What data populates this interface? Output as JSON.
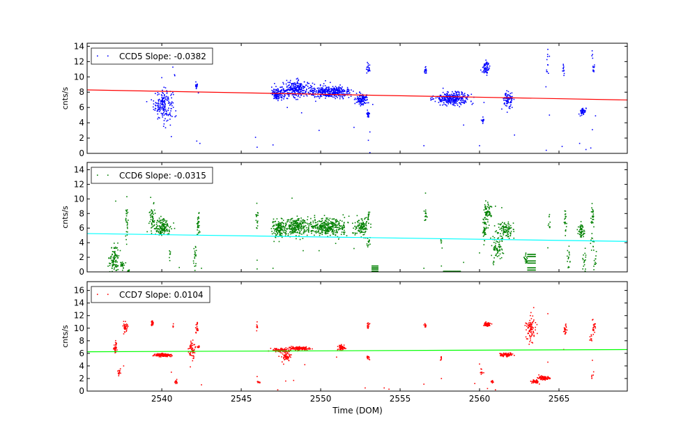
{
  "figure": {
    "xlabel": "Time (DOM)"
  },
  "chart_data": [
    {
      "type": "scatter",
      "name": "ccd5",
      "legend": "CCD5 Slope: -0.0382",
      "ylabel": "cnts/s",
      "xlim": [
        2535.3,
        2569.3
      ],
      "ylim": [
        0,
        14.4
      ],
      "xticks": [
        2540,
        2545,
        2550,
        2555,
        2560,
        2565
      ],
      "yticks": [
        0,
        2,
        4,
        6,
        8,
        10,
        12,
        14
      ],
      "show_xticklabels": false,
      "point_color": "#0000ff",
      "fit_color": "#ff0000",
      "fit_line": {
        "x": [
          2535.3,
          2569.3
        ],
        "y": [
          8.3,
          6.98
        ]
      },
      "clusters": [
        {
          "x": 2540.1,
          "y": 6.4,
          "sx": 0.3,
          "sy": 1.0,
          "n": 180
        },
        {
          "x": 2540.8,
          "y": 11.3,
          "sx": 0.05,
          "sy": 0.5,
          "n": 5
        },
        {
          "x": 2542.2,
          "y": 8.8,
          "sx": 0.05,
          "sy": 0.3,
          "n": 15
        },
        {
          "x": 2547.3,
          "y": 7.7,
          "sx": 0.2,
          "sy": 0.35,
          "n": 120
        },
        {
          "x": 2548.4,
          "y": 8.4,
          "sx": 0.45,
          "sy": 0.55,
          "n": 240
        },
        {
          "x": 2550.6,
          "y": 8.0,
          "sx": 0.7,
          "sy": 0.4,
          "n": 350
        },
        {
          "x": 2552.6,
          "y": 7.0,
          "sx": 0.2,
          "sy": 0.35,
          "n": 100
        },
        {
          "x": 2553.0,
          "y": 11.1,
          "sx": 0.05,
          "sy": 0.3,
          "n": 20
        },
        {
          "x": 2553.0,
          "y": 5.2,
          "sx": 0.06,
          "sy": 0.3,
          "n": 20
        },
        {
          "x": 2556.6,
          "y": 10.8,
          "sx": 0.04,
          "sy": 0.3,
          "n": 15
        },
        {
          "x": 2558.3,
          "y": 7.2,
          "sx": 0.55,
          "sy": 0.4,
          "n": 300
        },
        {
          "x": 2560.2,
          "y": 4.3,
          "sx": 0.04,
          "sy": 0.15,
          "n": 15
        },
        {
          "x": 2560.4,
          "y": 11.2,
          "sx": 0.12,
          "sy": 0.4,
          "n": 60
        },
        {
          "x": 2561.8,
          "y": 7.0,
          "sx": 0.15,
          "sy": 0.5,
          "n": 80
        },
        {
          "x": 2564.3,
          "y": 11.3,
          "sx": 0.04,
          "sy": 1.1,
          "n": 10
        },
        {
          "x": 2565.3,
          "y": 10.7,
          "sx": 0.04,
          "sy": 0.5,
          "n": 10
        },
        {
          "x": 2566.5,
          "y": 5.5,
          "sx": 0.1,
          "sy": 0.25,
          "n": 40
        },
        {
          "x": 2567.2,
          "y": 10.9,
          "sx": 0.04,
          "sy": 0.4,
          "n": 10
        },
        {
          "x": 2567.1,
          "y": 12.7,
          "sx": 0.03,
          "sy": 0.3,
          "n": 4
        }
      ],
      "outliers": [
        [
          2546.0,
          0.8
        ],
        [
          2547.0,
          1.1
        ],
        [
          2542.4,
          1.3
        ],
        [
          2542.2,
          1.6
        ],
        [
          2545.9,
          2.1
        ],
        [
          2549.9,
          3.0
        ],
        [
          2552.1,
          3.4
        ],
        [
          2553.1,
          2.8
        ],
        [
          2553.0,
          1.7
        ],
        [
          2553.1,
          0.1
        ],
        [
          2556.5,
          1.0
        ],
        [
          2559.0,
          3.7
        ],
        [
          2560.0,
          1.0
        ],
        [
          2562.2,
          2.4
        ],
        [
          2564.2,
          0.4
        ],
        [
          2565.2,
          0.9
        ],
        [
          2566.3,
          1.3
        ],
        [
          2566.7,
          0.5
        ],
        [
          2567.0,
          0.7
        ],
        [
          2567.1,
          3.1
        ],
        [
          2567.3,
          4.9
        ],
        [
          2564.4,
          5.0
        ],
        [
          2547.9,
          6.0
        ],
        [
          2564.3,
          13.6
        ],
        [
          2564.4,
          12.7
        ],
        [
          2540.6,
          2.2
        ],
        [
          2540.9,
          4.9
        ],
        [
          2540.0,
          9.9
        ],
        [
          2541.0,
          11.9
        ],
        [
          2542.3,
          7.9
        ],
        [
          2548.8,
          5.3
        ],
        [
          2561.4,
          5.8
        ],
        [
          2550.3,
          9.5
        ]
      ]
    },
    {
      "type": "scatter",
      "name": "ccd6",
      "legend": "CCD6 Slope: -0.0315",
      "ylabel": "cnts/s",
      "xlim": [
        2535.3,
        2569.3
      ],
      "ylim": [
        0,
        15
      ],
      "xticks": [
        2540,
        2545,
        2550,
        2555,
        2560,
        2565
      ],
      "yticks": [
        0,
        2,
        4,
        6,
        8,
        10,
        12,
        14
      ],
      "show_xticklabels": false,
      "point_color": "#008000",
      "fit_color": "#00ffff",
      "fit_line": {
        "x": [
          2535.3,
          2569.3
        ],
        "y": [
          5.25,
          4.18
        ]
      },
      "clusters": [
        {
          "x": 2537.0,
          "y": 1.8,
          "sx": 0.15,
          "sy": 1.0,
          "n": 90
        },
        {
          "x": 2537.5,
          "y": 1.0,
          "sx": 0.08,
          "sy": 0.3,
          "n": 25
        },
        {
          "x": 2537.8,
          "y": 6.5,
          "sx": 0.05,
          "sy": 1.3,
          "n": 25
        },
        {
          "x": 2537.9,
          "y": 0.15,
          "sx": 0.03,
          "sy": 0.08,
          "n": 8
        },
        {
          "x": 2539.4,
          "y": 7.6,
          "sx": 0.08,
          "sy": 0.7,
          "n": 40
        },
        {
          "x": 2540.0,
          "y": 6.1,
          "sx": 0.3,
          "sy": 0.6,
          "n": 150
        },
        {
          "x": 2540.5,
          "y": 2.3,
          "sx": 0.04,
          "sy": 0.4,
          "n": 8
        },
        {
          "x": 2542.1,
          "y": 2.1,
          "sx": 0.05,
          "sy": 1.0,
          "n": 20
        },
        {
          "x": 2542.3,
          "y": 6.6,
          "sx": 0.05,
          "sy": 0.6,
          "n": 30
        },
        {
          "x": 2546.0,
          "y": 7.2,
          "sx": 0.04,
          "sy": 0.7,
          "n": 15
        },
        {
          "x": 2547.3,
          "y": 5.9,
          "sx": 0.2,
          "sy": 0.55,
          "n": 130
        },
        {
          "x": 2548.4,
          "y": 6.2,
          "sx": 0.45,
          "sy": 0.6,
          "n": 250
        },
        {
          "x": 2550.5,
          "y": 6.1,
          "sx": 0.65,
          "sy": 0.6,
          "n": 330
        },
        {
          "x": 2552.6,
          "y": 6.1,
          "sx": 0.2,
          "sy": 0.6,
          "n": 110
        },
        {
          "x": 2553.0,
          "y": 7.4,
          "sx": 0.05,
          "sy": 0.5,
          "n": 15
        },
        {
          "x": 2553.0,
          "y": 4.1,
          "sx": 0.05,
          "sy": 0.4,
          "n": 15
        },
        {
          "x": 2556.6,
          "y": 7.6,
          "sx": 0.04,
          "sy": 0.5,
          "n": 15
        },
        {
          "x": 2557.6,
          "y": 4.2,
          "sx": 0.03,
          "sy": 0.3,
          "n": 6
        },
        {
          "x": 2560.3,
          "y": 5.8,
          "sx": 0.06,
          "sy": 0.8,
          "n": 40
        },
        {
          "x": 2560.5,
          "y": 8.2,
          "sx": 0.12,
          "sy": 0.7,
          "n": 60
        },
        {
          "x": 2561.1,
          "y": 3.5,
          "sx": 0.18,
          "sy": 1.2,
          "n": 80
        },
        {
          "x": 2561.7,
          "y": 5.8,
          "sx": 0.2,
          "sy": 0.5,
          "n": 90
        },
        {
          "x": 2562.9,
          "y": 1.8,
          "sx": 0.08,
          "sy": 0.6,
          "n": 20
        },
        {
          "x": 2564.4,
          "y": 7.0,
          "sx": 0.04,
          "sy": 1.0,
          "n": 10
        },
        {
          "x": 2565.4,
          "y": 6.6,
          "sx": 0.05,
          "sy": 0.7,
          "n": 20
        },
        {
          "x": 2565.6,
          "y": 2.0,
          "sx": 0.05,
          "sy": 1.0,
          "n": 15
        },
        {
          "x": 2566.4,
          "y": 5.6,
          "sx": 0.1,
          "sy": 0.5,
          "n": 50
        },
        {
          "x": 2566.6,
          "y": 1.5,
          "sx": 0.05,
          "sy": 0.7,
          "n": 15
        },
        {
          "x": 2567.1,
          "y": 7.7,
          "sx": 0.06,
          "sy": 0.6,
          "n": 25
        },
        {
          "x": 2567.1,
          "y": 4.2,
          "sx": 0.05,
          "sy": 0.8,
          "n": 12
        },
        {
          "x": 2567.3,
          "y": 1.5,
          "sx": 0.04,
          "sy": 0.7,
          "n": 10
        }
      ],
      "bands": [
        {
          "x0": 2553.2,
          "x1": 2553.6,
          "y": [
            0.1,
            0.35,
            0.55,
            0.8
          ]
        },
        {
          "x0": 2557.7,
          "x1": 2558.8,
          "y": [
            0.02,
            0.08
          ]
        },
        {
          "x0": 2563.0,
          "x1": 2563.5,
          "y": [
            0.25,
            0.55,
            1.2,
            1.5,
            2.1,
            2.4
          ]
        }
      ],
      "outliers": [
        [
          2537.1,
          9.7
        ],
        [
          2537.8,
          10.3
        ],
        [
          2539.3,
          10.2
        ],
        [
          2556.6,
          10.8
        ],
        [
          2548.2,
          10.1
        ],
        [
          2546.0,
          1.6
        ],
        [
          2546.0,
          0.4
        ],
        [
          2547.0,
          0.5
        ],
        [
          2541.1,
          0.6
        ],
        [
          2542.5,
          0.5
        ],
        [
          2549.9,
          2.9
        ],
        [
          2552.1,
          3.2
        ],
        [
          2548.9,
          2.9
        ],
        [
          2556.5,
          0.5
        ],
        [
          2557.6,
          0.8
        ],
        [
          2559.0,
          1.3
        ],
        [
          2560.0,
          2.6
        ],
        [
          2564.3,
          3.3
        ],
        [
          2566.5,
          0.4
        ],
        [
          2561.0,
          9.0
        ],
        [
          2561.4,
          8.8
        ],
        [
          2567.2,
          0.3
        ]
      ]
    },
    {
      "type": "scatter",
      "name": "ccd7",
      "legend": "CCD7 Slope: 0.0104",
      "ylabel": "cnts/s",
      "xlim": [
        2535.3,
        2569.3
      ],
      "ylim": [
        0,
        17.4
      ],
      "xticks": [
        2540,
        2545,
        2550,
        2555,
        2560,
        2565
      ],
      "yticks": [
        0,
        2,
        4,
        6,
        8,
        10,
        12,
        14,
        16
      ],
      "show_xticklabels": true,
      "point_color": "#ff0000",
      "fit_color": "#00ff00",
      "fit_line": {
        "x": [
          2535.3,
          2569.3
        ],
        "y": [
          6.25,
          6.6
        ]
      },
      "clusters": [
        {
          "x": 2537.1,
          "y": 7.0,
          "sx": 0.07,
          "sy": 0.5,
          "n": 35
        },
        {
          "x": 2537.3,
          "y": 2.9,
          "sx": 0.05,
          "sy": 0.25,
          "n": 15
        },
        {
          "x": 2537.7,
          "y": 10.2,
          "sx": 0.08,
          "sy": 0.5,
          "n": 35
        },
        {
          "x": 2539.4,
          "y": 10.7,
          "sx": 0.05,
          "sy": 0.25,
          "n": 20
        },
        {
          "x": 2540.1,
          "y": 5.7,
          "sx": 0.25,
          "sy": 0.12,
          "n": 150
        },
        {
          "x": 2540.7,
          "y": 10.4,
          "sx": 0.03,
          "sy": 0.15,
          "n": 5
        },
        {
          "x": 2540.9,
          "y": 1.5,
          "sx": 0.05,
          "sy": 0.2,
          "n": 15
        },
        {
          "x": 2541.9,
          "y": 6.5,
          "sx": 0.1,
          "sy": 0.8,
          "n": 60
        },
        {
          "x": 2542.2,
          "y": 10.0,
          "sx": 0.05,
          "sy": 0.5,
          "n": 20
        },
        {
          "x": 2542.3,
          "y": 7.0,
          "sx": 0.05,
          "sy": 0.15,
          "n": 10
        },
        {
          "x": 2546.0,
          "y": 10.2,
          "sx": 0.03,
          "sy": 0.25,
          "n": 8
        },
        {
          "x": 2546.1,
          "y": 1.4,
          "sx": 0.04,
          "sy": 0.1,
          "n": 10
        },
        {
          "x": 2547.5,
          "y": 6.5,
          "sx": 0.3,
          "sy": 0.15,
          "n": 90
        },
        {
          "x": 2547.8,
          "y": 5.5,
          "sx": 0.15,
          "sy": 0.45,
          "n": 60
        },
        {
          "x": 2548.6,
          "y": 6.8,
          "sx": 0.35,
          "sy": 0.12,
          "n": 120
        },
        {
          "x": 2551.3,
          "y": 6.9,
          "sx": 0.1,
          "sy": 0.2,
          "n": 60
        },
        {
          "x": 2553.0,
          "y": 10.3,
          "sx": 0.04,
          "sy": 0.3,
          "n": 15
        },
        {
          "x": 2553.0,
          "y": 5.3,
          "sx": 0.04,
          "sy": 0.2,
          "n": 15
        },
        {
          "x": 2556.6,
          "y": 10.4,
          "sx": 0.04,
          "sy": 0.2,
          "n": 15
        },
        {
          "x": 2557.6,
          "y": 5.2,
          "sx": 0.03,
          "sy": 0.2,
          "n": 8
        },
        {
          "x": 2560.1,
          "y": 3.0,
          "sx": 0.04,
          "sy": 0.2,
          "n": 10
        },
        {
          "x": 2560.5,
          "y": 10.6,
          "sx": 0.12,
          "sy": 0.2,
          "n": 60
        },
        {
          "x": 2560.8,
          "y": 1.5,
          "sx": 0.05,
          "sy": 0.1,
          "n": 15
        },
        {
          "x": 2561.7,
          "y": 5.8,
          "sx": 0.2,
          "sy": 0.15,
          "n": 70
        },
        {
          "x": 2563.2,
          "y": 10.0,
          "sx": 0.15,
          "sy": 1.0,
          "n": 90
        },
        {
          "x": 2563.5,
          "y": 1.5,
          "sx": 0.12,
          "sy": 0.12,
          "n": 40
        },
        {
          "x": 2564.0,
          "y": 2.1,
          "sx": 0.2,
          "sy": 0.15,
          "n": 80
        },
        {
          "x": 2565.4,
          "y": 10.0,
          "sx": 0.05,
          "sy": 0.6,
          "n": 20
        },
        {
          "x": 2567.2,
          "y": 10.0,
          "sx": 0.05,
          "sy": 0.6,
          "n": 20
        },
        {
          "x": 2567.0,
          "y": 8.2,
          "sx": 0.04,
          "sy": 0.3,
          "n": 8
        },
        {
          "x": 2567.1,
          "y": 2.5,
          "sx": 0.04,
          "sy": 0.4,
          "n": 6
        }
      ],
      "outliers": [
        [
          2537.6,
          4.0
        ],
        [
          2546.0,
          2.3
        ],
        [
          2547.3,
          0.2
        ],
        [
          2547.8,
          1.6
        ],
        [
          2549.0,
          4.2
        ],
        [
          2548.3,
          1.7
        ],
        [
          2551.0,
          5.4
        ],
        [
          2552.8,
          0.5
        ],
        [
          2554.0,
          0.5
        ],
        [
          2556.5,
          1.1
        ],
        [
          2557.6,
          2.0
        ],
        [
          2559.7,
          1.2
        ],
        [
          2560.0,
          4.3
        ],
        [
          2560.5,
          0.4
        ],
        [
          2561.0,
          0.2
        ],
        [
          2564.3,
          4.6
        ],
        [
          2564.3,
          12.3
        ],
        [
          2565.3,
          6.6
        ],
        [
          2567.1,
          4.9
        ],
        [
          2567.1,
          11.3
        ],
        [
          2542.5,
          1.0
        ],
        [
          2540.6,
          3.0
        ],
        [
          2554.3,
          0.3
        ]
      ]
    }
  ]
}
